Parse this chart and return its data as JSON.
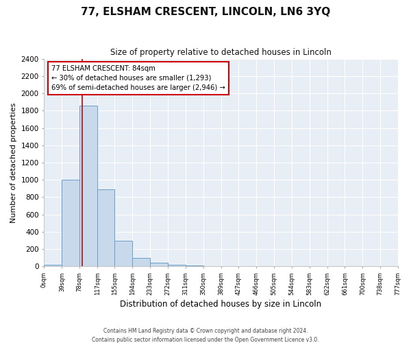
{
  "title": "77, ELSHAM CRESCENT, LINCOLN, LN6 3YQ",
  "subtitle": "Size of property relative to detached houses in Lincoln",
  "xlabel": "Distribution of detached houses by size in Lincoln",
  "ylabel": "Number of detached properties",
  "bar_edges": [
    0,
    39,
    78,
    117,
    155,
    194,
    233,
    272,
    311,
    350,
    389,
    427,
    466,
    505,
    544,
    583,
    622,
    661,
    700,
    738,
    777
  ],
  "bar_heights": [
    20,
    1000,
    1860,
    890,
    300,
    100,
    40,
    20,
    10,
    5,
    0,
    0,
    0,
    0,
    0,
    0,
    0,
    0,
    0,
    0
  ],
  "bar_color": "#c9d9ec",
  "bar_edge_color": "#6a9fc8",
  "tick_labels": [
    "0sqm",
    "39sqm",
    "78sqm",
    "117sqm",
    "155sqm",
    "194sqm",
    "233sqm",
    "272sqm",
    "311sqm",
    "350sqm",
    "389sqm",
    "427sqm",
    "466sqm",
    "505sqm",
    "544sqm",
    "583sqm",
    "622sqm",
    "661sqm",
    "700sqm",
    "738sqm",
    "777sqm"
  ],
  "ylim": [
    0,
    2400
  ],
  "yticks": [
    0,
    200,
    400,
    600,
    800,
    1000,
    1200,
    1400,
    1600,
    1800,
    2000,
    2200,
    2400
  ],
  "red_line_x": 84,
  "annotation_title": "77 ELSHAM CRESCENT: 84sqm",
  "annotation_line1": "← 30% of detached houses are smaller (1,293)",
  "annotation_line2": "69% of semi-detached houses are larger (2,946) →",
  "annotation_box_color": "#ffffff",
  "annotation_box_edge": "#cc0000",
  "red_line_color": "#cc0000",
  "plot_bg_color": "#e8eef5",
  "fig_bg_color": "#ffffff",
  "grid_color": "#ffffff",
  "footer1": "Contains HM Land Registry data © Crown copyright and database right 2024.",
  "footer2": "Contains public sector information licensed under the Open Government Licence v3.0."
}
